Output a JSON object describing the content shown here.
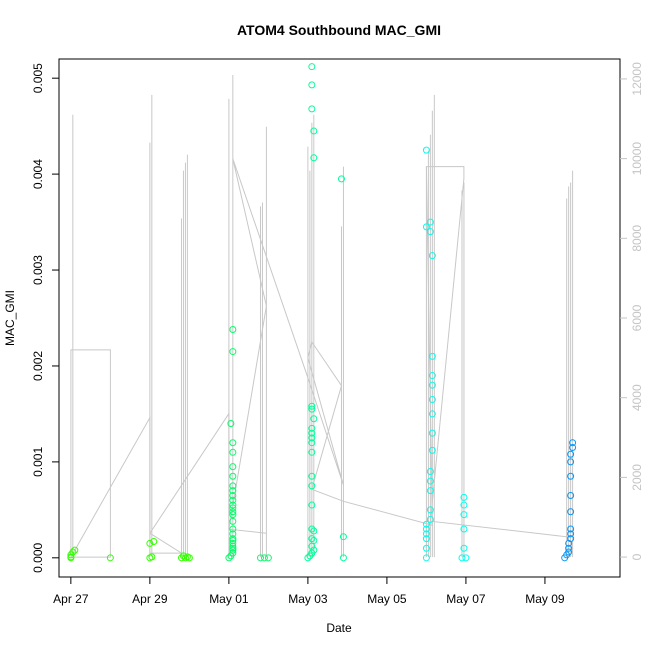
{
  "chart_data": {
    "type": "scatter",
    "title": "ATOM4 Southbound MAC_GMI",
    "xlabel": "Date",
    "ylabel": "MAC_GMI",
    "x_ticks": [
      "Apr 27",
      "Apr 29",
      "May 01",
      "May 03",
      "May 05",
      "May 07",
      "May 09"
    ],
    "xlim_days": [
      26.7,
      40.9
    ],
    "ylim": [
      -0.0002,
      0.0052
    ],
    "y_ticks": [
      "0.000",
      "0.001",
      "0.002",
      "0.003",
      "0.004",
      "0.005"
    ],
    "y_tick_values": [
      0,
      0.001,
      0.002,
      0.003,
      0.004,
      0.005
    ],
    "y2lim": [
      -500,
      12500
    ],
    "y2_ticks": [
      "0",
      "2000",
      "4000",
      "6000",
      "8000",
      "10000",
      "12000"
    ],
    "y2_tick_values": [
      0,
      2000,
      4000,
      6000,
      8000,
      10000,
      12000
    ],
    "series": [
      {
        "color": "#33ff00",
        "x": [
          27.0,
          27.0,
          27.05,
          27.1,
          27.0,
          28.0,
          29.0,
          29.05,
          29.0,
          29.1,
          29.8,
          29.85,
          29.9,
          29.95,
          30.0
        ],
        "y": [
          0.0,
          3e-05,
          6e-05,
          8e-05,
          1e-05,
          0.0,
          0.0,
          1e-05,
          0.00015,
          0.00017,
          0.0,
          2e-05,
          0.0,
          1e-05,
          0.0
        ]
      },
      {
        "color": "#00ff66",
        "x": [
          31.0,
          31.05,
          31.1,
          31.1,
          31.1,
          31.1,
          31.1,
          31.1,
          31.1,
          31.1,
          31.1,
          31.1,
          31.1,
          31.1,
          31.1,
          31.1,
          31.1,
          31.05,
          31.1,
          31.1,
          31.1,
          31.1,
          31.1,
          31.1,
          31.1,
          31.1,
          31.1,
          31.8,
          31.9,
          32.0
        ],
        "y": [
          0.0,
          2e-05,
          5e-05,
          0.0001,
          0.00015,
          0.0002,
          0.0003,
          0.00038,
          0.00045,
          0.00052,
          0.0006,
          0.00065,
          0.00075,
          0.00085,
          0.00095,
          0.0011,
          0.0012,
          0.0014,
          0.00215,
          0.00238,
          0.0007,
          0.00055,
          0.00048,
          0.00025,
          0.00018,
          0.00012,
          8e-05,
          0.0,
          0.0,
          0.0
        ]
      },
      {
        "color": "#00ff99",
        "x": [
          33.0,
          33.05,
          33.1,
          33.1,
          33.1,
          33.1,
          33.1,
          33.1,
          33.1,
          33.1,
          33.1,
          33.1,
          33.1,
          33.1,
          33.15,
          33.1,
          33.1,
          33.15,
          33.15,
          33.1,
          33.1,
          33.1,
          33.15,
          33.15,
          33.15,
          33.9,
          33.9,
          33.85
        ],
        "y": [
          0.0,
          2e-05,
          5e-05,
          0.00012,
          0.0002,
          0.0003,
          0.00055,
          0.00075,
          0.00085,
          0.0011,
          0.0012,
          0.00125,
          0.0013,
          0.00135,
          0.00145,
          0.00155,
          0.00158,
          0.00417,
          0.00445,
          0.00468,
          0.00493,
          0.00512,
          0.00028,
          0.00018,
          8e-05,
          0.0,
          0.00022,
          0.00395
        ]
      },
      {
        "color": "#00ffee",
        "x": [
          36.0,
          36.0,
          36.0,
          36.0,
          36.0,
          36.0,
          36.1,
          36.1,
          36.15,
          36.15,
          36.15,
          36.15,
          36.15,
          36.15,
          36.15,
          36.15,
          36.1,
          36.1,
          36.1,
          36.1,
          36.0,
          36.0,
          36.1,
          36.9,
          36.95,
          36.95,
          36.95,
          36.95,
          36.95,
          37.0
        ],
        "y": [
          0.0,
          0.0001,
          0.0002,
          0.0003,
          0.00425,
          0.00345,
          0.0035,
          0.0034,
          0.00315,
          0.0021,
          0.0019,
          0.0018,
          0.00165,
          0.0015,
          0.0013,
          0.00112,
          0.0009,
          0.0008,
          0.0007,
          0.0005,
          0.00035,
          0.00025,
          0.0004,
          0.0,
          0.0001,
          0.0003,
          0.00045,
          0.00055,
          0.00063,
          0.0
        ]
      },
      {
        "color": "#0099ff",
        "x": [
          39.5,
          39.55,
          39.6,
          39.6,
          39.6,
          39.65,
          39.65,
          39.65,
          39.65,
          39.65,
          39.65,
          39.65,
          39.65,
          39.7,
          39.7
        ],
        "y": [
          0.0,
          3e-05,
          6e-05,
          0.0001,
          0.00015,
          0.0002,
          0.00025,
          0.0003,
          0.00048,
          0.00065,
          0.00085,
          0.001,
          0.00108,
          0.00115,
          0.0012
        ]
      }
    ],
    "secondary_series": {
      "color": "#c8c8c8",
      "spikes": [
        {
          "x": 27.05,
          "top": 11100
        },
        {
          "x": 29.0,
          "top": 10400
        },
        {
          "x": 29.05,
          "top": 11600
        },
        {
          "x": 29.8,
          "top": 8500
        },
        {
          "x": 29.85,
          "top": 9700
        },
        {
          "x": 29.9,
          "top": 9900
        },
        {
          "x": 29.95,
          "top": 10100
        },
        {
          "x": 31.0,
          "top": 11500
        },
        {
          "x": 31.1,
          "top": 12100
        },
        {
          "x": 31.8,
          "top": 8800
        },
        {
          "x": 31.85,
          "top": 8900
        },
        {
          "x": 31.95,
          "top": 10800
        },
        {
          "x": 33.0,
          "top": 10300
        },
        {
          "x": 33.05,
          "top": 9700
        },
        {
          "x": 33.1,
          "top": 10900
        },
        {
          "x": 33.15,
          "top": 11100
        },
        {
          "x": 33.85,
          "top": 8300
        },
        {
          "x": 33.9,
          "top": 9800
        },
        {
          "x": 36.0,
          "top": 9800
        },
        {
          "x": 36.05,
          "top": 10200
        },
        {
          "x": 36.1,
          "top": 10600
        },
        {
          "x": 36.15,
          "top": 11200
        },
        {
          "x": 36.2,
          "top": 11600
        },
        {
          "x": 36.9,
          "top": 9200
        },
        {
          "x": 36.95,
          "top": 9400
        },
        {
          "x": 39.55,
          "top": 9000
        },
        {
          "x": 39.6,
          "top": 9300
        },
        {
          "x": 39.65,
          "top": 9400
        },
        {
          "x": 39.7,
          "top": 9700
        }
      ],
      "trace": [
        [
          27.0,
          100
        ],
        [
          27.0,
          5200
        ],
        [
          28.0,
          5200
        ],
        [
          28.0,
          0
        ],
        [
          27.0,
          0
        ],
        [
          29.0,
          3500
        ],
        [
          29.0,
          100
        ],
        [
          29.8,
          100
        ],
        [
          29.0,
          600
        ],
        [
          31.0,
          3600
        ],
        [
          31.0,
          700
        ],
        [
          31.95,
          600
        ],
        [
          31.0,
          700
        ],
        [
          31.95,
          6300
        ],
        [
          31.1,
          10000
        ],
        [
          33.0,
          4500
        ],
        [
          33.9,
          1800
        ],
        [
          33.0,
          5000
        ],
        [
          33.1,
          5400
        ],
        [
          33.85,
          4300
        ],
        [
          33.1,
          1700
        ],
        [
          33.9,
          1400
        ],
        [
          36.15,
          800
        ],
        [
          36.0,
          9800
        ],
        [
          36.95,
          9800
        ],
        [
          36.95,
          9500
        ],
        [
          36.1,
          900
        ],
        [
          39.65,
          500
        ]
      ]
    }
  }
}
